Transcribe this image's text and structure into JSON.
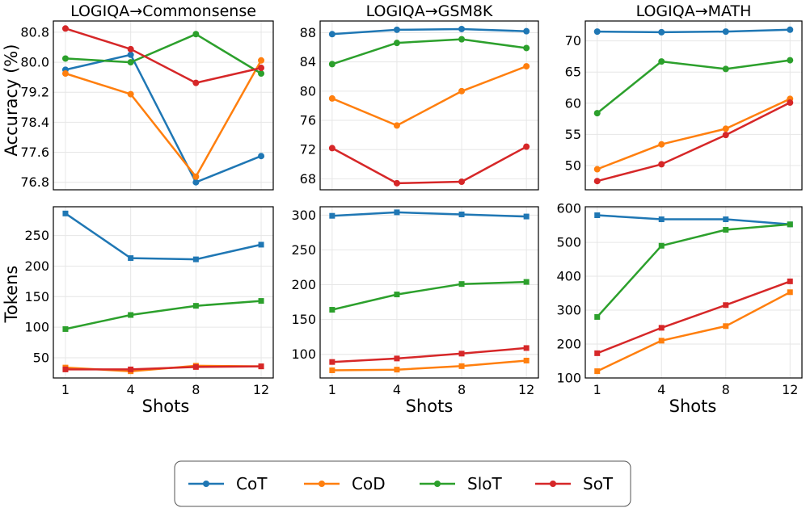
{
  "legend": {
    "entries": [
      {
        "name": "CoT",
        "color": "#1f77b4"
      },
      {
        "name": "CoD",
        "color": "#ff7f0e"
      },
      {
        "name": "SloT",
        "color": "#2ca02c"
      },
      {
        "name": "SoT",
        "color": "#d62728"
      }
    ]
  },
  "ylabels": {
    "accuracy": "Accuracy (%)",
    "tokens": "Tokens"
  },
  "xlabel": "Shots",
  "chart_data": [
    {
      "type": "line",
      "title": "LOGIQA→Commonsense",
      "metric": "accuracy",
      "categories": [
        "1",
        "4",
        "8",
        "12"
      ],
      "ylim": [
        76.6,
        81.1
      ],
      "yticks": [
        76.8,
        77.6,
        78.4,
        79.2,
        80.0,
        80.8
      ],
      "ytick_labels": [
        "76.8",
        "77.6",
        "78.4",
        "79.2",
        "80.0",
        "80.8"
      ],
      "series": [
        {
          "name": "CoT",
          "values": [
            79.8,
            80.2,
            76.8,
            77.5
          ]
        },
        {
          "name": "CoD",
          "values": [
            79.7,
            79.15,
            76.95,
            80.05
          ]
        },
        {
          "name": "SloT",
          "values": [
            80.1,
            80.0,
            80.75,
            79.7
          ]
        },
        {
          "name": "SoT",
          "values": [
            80.9,
            80.35,
            79.45,
            79.85
          ]
        }
      ]
    },
    {
      "type": "line",
      "title": "LOGIQA→GSM8K",
      "metric": "accuracy",
      "categories": [
        "1",
        "4",
        "8",
        "12"
      ],
      "ylim": [
        66.5,
        89.6
      ],
      "yticks": [
        68,
        72,
        76,
        80,
        84,
        88
      ],
      "ytick_labels": [
        "68",
        "72",
        "76",
        "80",
        "84",
        "88"
      ],
      "series": [
        {
          "name": "CoT",
          "values": [
            87.8,
            88.4,
            88.5,
            88.2
          ]
        },
        {
          "name": "CoD",
          "values": [
            79.0,
            75.3,
            80.0,
            83.4
          ]
        },
        {
          "name": "SloT",
          "values": [
            83.7,
            86.6,
            87.1,
            85.9
          ]
        },
        {
          "name": "SoT",
          "values": [
            72.2,
            67.4,
            67.6,
            72.4
          ]
        }
      ]
    },
    {
      "type": "line",
      "title": "LOGIQA→MATH",
      "metric": "accuracy",
      "categories": [
        "1",
        "4",
        "8",
        "12"
      ],
      "ylim": [
        46.1,
        73.2
      ],
      "yticks": [
        50,
        55,
        60,
        65,
        70
      ],
      "ytick_labels": [
        "50",
        "55",
        "60",
        "65",
        "70"
      ],
      "series": [
        {
          "name": "CoT",
          "values": [
            71.5,
            71.4,
            71.5,
            71.8
          ]
        },
        {
          "name": "CoD",
          "values": [
            49.4,
            53.4,
            55.9,
            60.7
          ]
        },
        {
          "name": "SloT",
          "values": [
            58.4,
            66.7,
            65.5,
            66.9
          ]
        },
        {
          "name": "SoT",
          "values": [
            47.5,
            50.2,
            54.9,
            60.1
          ]
        }
      ]
    },
    {
      "type": "line",
      "title": "",
      "metric": "tokens",
      "categories": [
        "1",
        "4",
        "8",
        "12"
      ],
      "ylim": [
        17,
        297
      ],
      "yticks": [
        50,
        100,
        150,
        200,
        250
      ],
      "ytick_labels": [
        "50",
        "100",
        "150",
        "200",
        "250"
      ],
      "series": [
        {
          "name": "CoT",
          "values": [
            286,
            213,
            211,
            235
          ]
        },
        {
          "name": "CoD",
          "values": [
            34,
            28,
            37,
            36
          ]
        },
        {
          "name": "SloT",
          "values": [
            97,
            120,
            135,
            143
          ]
        },
        {
          "name": "SoT",
          "values": [
            31,
            31,
            35,
            36
          ]
        }
      ]
    },
    {
      "type": "line",
      "title": "",
      "metric": "tokens",
      "categories": [
        "1",
        "4",
        "8",
        "12"
      ],
      "ylim": [
        66,
        312
      ],
      "yticks": [
        100,
        150,
        200,
        250,
        300
      ],
      "ytick_labels": [
        "100",
        "150",
        "200",
        "250",
        "300"
      ],
      "series": [
        {
          "name": "CoT",
          "values": [
            299,
            304,
            301,
            298
          ]
        },
        {
          "name": "CoD",
          "values": [
            77,
            78,
            83,
            91
          ]
        },
        {
          "name": "SloT",
          "values": [
            164,
            186,
            201,
            204
          ]
        },
        {
          "name": "SoT",
          "values": [
            89,
            94,
            101,
            109
          ]
        }
      ]
    },
    {
      "type": "line",
      "title": "",
      "metric": "tokens",
      "categories": [
        "1",
        "4",
        "8",
        "12"
      ],
      "ylim": [
        100,
        605
      ],
      "yticks": [
        100,
        200,
        300,
        400,
        500,
        600
      ],
      "ytick_labels": [
        "100",
        "200",
        "300",
        "400",
        "500",
        "600"
      ],
      "series": [
        {
          "name": "CoT",
          "values": [
            580,
            568,
            568,
            553
          ]
        },
        {
          "name": "CoD",
          "values": [
            120,
            210,
            253,
            353
          ]
        },
        {
          "name": "SloT",
          "values": [
            280,
            490,
            537,
            553
          ]
        },
        {
          "name": "SoT",
          "values": [
            173,
            248,
            315,
            385
          ]
        }
      ]
    }
  ]
}
